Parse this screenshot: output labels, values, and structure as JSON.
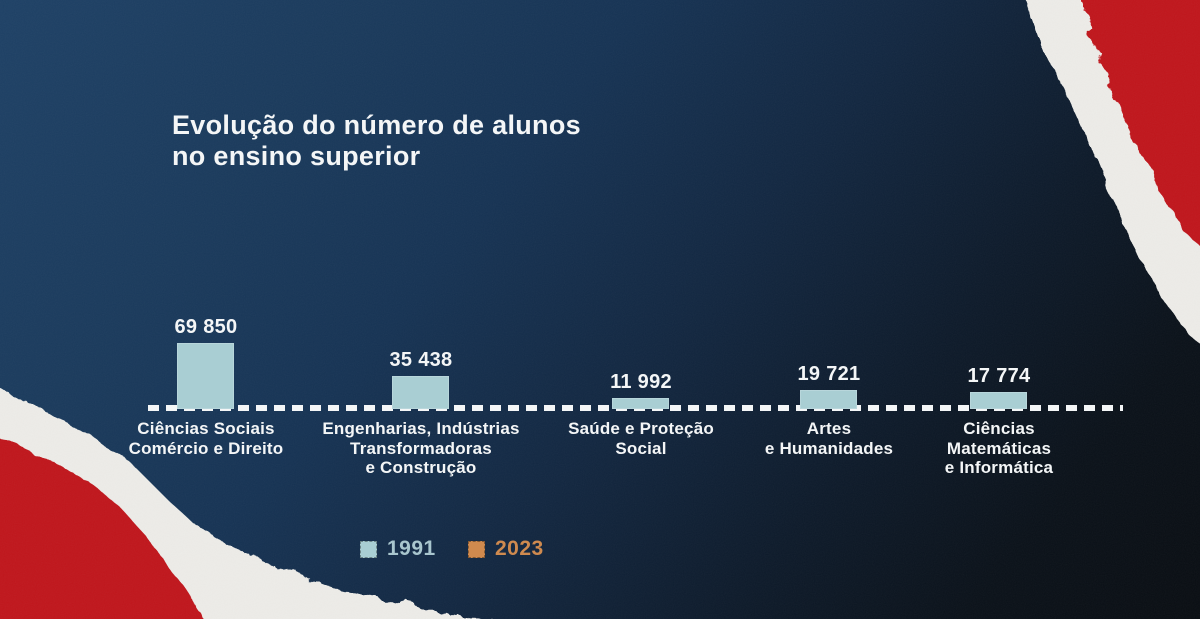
{
  "title": {
    "full": "Evolução do número de alunos no ensino superior",
    "line1": "Evolução do número de alunos",
    "line2": "no ensino superior"
  },
  "colors": {
    "background_navy_top": "#1e4166",
    "background_dark_bottom": "#090d12",
    "bar_1991": "#a9ced3",
    "accent_2023": "#d08a4e",
    "legend_text_1991": "#a9c6ce",
    "legend_text_2023": "#cf8a4f",
    "torn_paper_red": "#c0191e",
    "torn_paper_white": "#edece8",
    "baseline_white": "#f4f6f7",
    "text_white": "#f4f6f7"
  },
  "chart_data": {
    "type": "bar",
    "title": "Evolução do número de alunos no ensino superior",
    "categories": [
      "Ciências Sociais Comércio e Direito",
      "Engenharias, Indústrias Transformadoras e Construção",
      "Saúde e Proteção Social",
      "Artes e Humanidades",
      "Ciências Matemáticas e Informática"
    ],
    "category_lines": [
      [
        "Ciências Sociais",
        "Comércio e Direito"
      ],
      [
        "Engenharias, Indústrias",
        "Transformadoras",
        "e Construção"
      ],
      [
        "Saúde e Proteção",
        "Social"
      ],
      [
        "Artes",
        "e Humanidades"
      ],
      [
        "Ciências",
        "Matemáticas",
        "e Informática"
      ]
    ],
    "series": [
      {
        "name": "1991",
        "color": "#a9ced3",
        "values": [
          69850,
          35438,
          11992,
          19721,
          17774
        ]
      },
      {
        "name": "2023",
        "color": "#d08a4e",
        "values": []
      }
    ],
    "value_labels": [
      "69 850",
      "35 438",
      "11 992",
      "19 721",
      "17 774"
    ],
    "ylim": [
      0,
      70000
    ],
    "grid": false,
    "baseline_style": "dotted-white",
    "legend_position": "bottom-left"
  }
}
